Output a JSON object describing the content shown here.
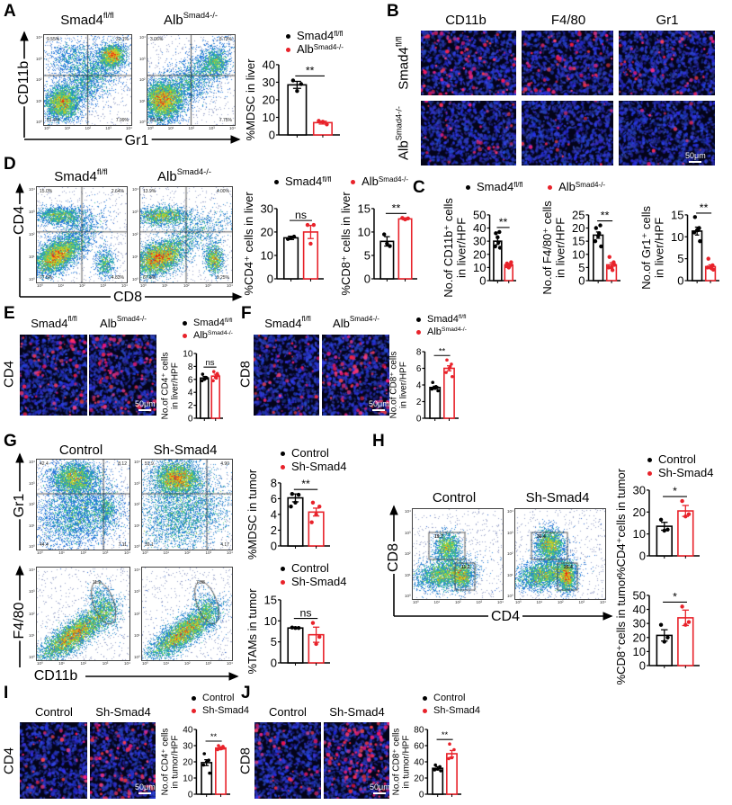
{
  "groups": {
    "liver": [
      {
        "base": "Smad4",
        "sup": "fl/fl",
        "color": "#000000"
      },
      {
        "base": "Alb",
        "sup": "Smad4-/-",
        "color": "#e8222a"
      }
    ],
    "tumor": [
      {
        "label": "Control",
        "color": "#000000"
      },
      {
        "label": "Sh-Smad4",
        "color": "#e8222a"
      }
    ]
  },
  "flow_ticks": [
    "10⁰",
    "10¹",
    "10²",
    "10³",
    "10⁴"
  ],
  "scale_bar": "50μm",
  "panels": {
    "A": {
      "letter": "A",
      "y_axis": "CD11b",
      "x_axis": "Gr1",
      "quadrants": [
        [
          "9.55%",
          "32.1%",
          "51.4%",
          "7.99%"
        ],
        [
          "3.06%",
          "8.73%",
          "80.4%",
          "7.75%"
        ]
      ]
    },
    "B": {
      "letter": "B",
      "columns": [
        "CD11b",
        "F4/80",
        "Gr1"
      ]
    },
    "C": {
      "letter": "C"
    },
    "D": {
      "letter": "D",
      "y_axis": "CD4",
      "x_axis": "CD8",
      "quadrants": [
        [
          "15.0%",
          "2.64%",
          "77.5%",
          "4.83%"
        ],
        [
          "13.9%",
          "4.00%",
          "67.8%",
          "9.25%"
        ]
      ]
    },
    "E": {
      "letter": "E",
      "stain": "CD4"
    },
    "F": {
      "letter": "F",
      "stain": "CD8"
    },
    "G": {
      "letter": "G",
      "y_axis_top": "Gr1",
      "y_axis_bottom": "F4/80",
      "x_axis": "CD11b",
      "quadrants": [
        [
          "42.4",
          "8.12",
          "44.4",
          "7.11"
        ],
        [
          "51.9",
          "4.90",
          "39.1",
          "4.17"
        ]
      ],
      "gates": [
        "11.2",
        "7.38"
      ]
    },
    "H": {
      "letter": "H",
      "y_axis": "CD8",
      "x_axis": "CD4",
      "gates": [
        [
          "19.7",
          "11.2"
        ],
        [
          "30.4",
          "25.4"
        ]
      ]
    },
    "I": {
      "letter": "I",
      "stain": "CD4"
    },
    "J": {
      "letter": "J",
      "stain": "CD8"
    }
  },
  "chart_data": [
    {
      "id": "A",
      "type": "bar",
      "ylabel": [
        "%MDSC in liver"
      ],
      "ymax": 40,
      "yticks": [
        "0",
        "10",
        "20",
        "30",
        "40"
      ],
      "sig": "**",
      "groups": [
        {
          "color": "#000000",
          "mean": 28.5,
          "sem": 2.0,
          "points": [
            31,
            29,
            25
          ]
        },
        {
          "color": "#e8222a",
          "mean": 7.0,
          "sem": 0.8,
          "points": [
            8,
            6,
            7.5
          ]
        }
      ]
    },
    {
      "id": "D-CD4",
      "type": "bar",
      "ylabel": [
        "%CD4⁺ cells in liver"
      ],
      "ymax": 30,
      "yticks": [
        "0",
        "10",
        "20",
        "30"
      ],
      "sig": "ns",
      "groups": [
        {
          "color": "#000000",
          "mean": 17.5,
          "sem": 0.7,
          "points": [
            17,
            18,
            17.5
          ]
        },
        {
          "color": "#e8222a",
          "mean": 20.0,
          "sem": 2.8,
          "points": [
            23,
            23,
            15
          ]
        }
      ]
    },
    {
      "id": "D-CD8",
      "type": "bar",
      "ylabel": [
        "%CD8⁺ cells in liver"
      ],
      "ymax": 15,
      "yticks": [
        "0",
        "5",
        "10",
        "15"
      ],
      "sig": "**",
      "groups": [
        {
          "color": "#000000",
          "mean": 8.0,
          "sem": 1.0,
          "points": [
            9.5,
            7,
            7.5
          ]
        },
        {
          "color": "#e8222a",
          "mean": 12.8,
          "sem": 0.2,
          "points": [
            13,
            12.9,
            12.7
          ]
        }
      ]
    },
    {
      "id": "C-CD11b",
      "type": "bar",
      "ylabel": [
        "No.of CD11b⁺ cells",
        "in liver/HPF"
      ],
      "ymax": 50,
      "yticks": [
        "0",
        "10",
        "20",
        "30",
        "40",
        "50"
      ],
      "sig": "**",
      "groups": [
        {
          "color": "#000000",
          "mean": 30,
          "sem": 2.5,
          "points": [
            36,
            37,
            33,
            26,
            25,
            29
          ]
        },
        {
          "color": "#e8222a",
          "mean": 12,
          "sem": 1.0,
          "points": [
            13,
            12,
            10,
            11,
            14,
            11
          ]
        }
      ]
    },
    {
      "id": "C-F480",
      "type": "bar",
      "ylabel": [
        "No.of F4/80⁺ cells",
        "in liver/HPF"
      ],
      "ymax": 25,
      "yticks": [
        "0",
        "5",
        "10",
        "15",
        "20",
        "25"
      ],
      "sig": "**",
      "groups": [
        {
          "color": "#000000",
          "mean": 17.3,
          "sem": 1.2,
          "points": [
            20,
            21,
            17,
            15,
            13,
            18
          ]
        },
        {
          "color": "#e8222a",
          "mean": 6.0,
          "sem": 0.8,
          "points": [
            9,
            7,
            5,
            5,
            6,
            4
          ]
        }
      ]
    },
    {
      "id": "C-Gr1",
      "type": "bar",
      "ylabel": [
        "No.of Gr1⁺ cells",
        "in liver/HPF"
      ],
      "ymax": 15,
      "yticks": [
        "0",
        "5",
        "10",
        "15"
      ],
      "sig": "**",
      "groups": [
        {
          "color": "#000000",
          "mean": 11.3,
          "sem": 0.9,
          "points": [
            14.5,
            12,
            11.5,
            11,
            9,
            11.5
          ]
        },
        {
          "color": "#e8222a",
          "mean": 3.2,
          "sem": 0.4,
          "points": [
            5,
            3.5,
            3,
            3,
            2.5,
            2.8
          ]
        }
      ]
    },
    {
      "id": "E",
      "type": "bar",
      "ylabel": [
        "No.of CD4⁺ cells",
        "in liver/HPF"
      ],
      "ymax": 10,
      "yticks": [
        "0",
        "2",
        "4",
        "6",
        "8",
        "10"
      ],
      "sig": "ns",
      "groups": [
        {
          "color": "#000000",
          "mean": 6.2,
          "sem": 0.25,
          "points": [
            6.8,
            6.3,
            6,
            5.8,
            6.2,
            6.3
          ]
        },
        {
          "color": "#e8222a",
          "mean": 6.5,
          "sem": 0.3,
          "points": [
            7.2,
            6.9,
            6.4,
            5.8,
            6.6,
            6.2
          ]
        }
      ]
    },
    {
      "id": "F",
      "type": "bar",
      "ylabel": [
        "No.of CD8⁺ cells",
        "in liver/HPF"
      ],
      "ymax": 8,
      "yticks": [
        "0",
        "2",
        "4",
        "6",
        "8"
      ],
      "sig": "**",
      "groups": [
        {
          "color": "#000000",
          "mean": 3.7,
          "sem": 0.15,
          "points": [
            4.3,
            3.7,
            3.6,
            3.5,
            3.3,
            3.8
          ]
        },
        {
          "color": "#e8222a",
          "mean": 6.0,
          "sem": 0.3,
          "points": [
            7,
            6.5,
            6,
            5.5,
            5,
            6.2
          ]
        }
      ]
    },
    {
      "id": "G-MDSC",
      "type": "bar",
      "ylabel": [
        "%MDSC in tumor"
      ],
      "ymax": 8,
      "yticks": [
        "0",
        "2",
        "4",
        "6",
        "8"
      ],
      "sig": "**",
      "groups": [
        {
          "color": "#000000",
          "mean": 6.1,
          "sem": 0.5,
          "points": [
            6.6,
            6.5,
            5.5,
            5
          ]
        },
        {
          "color": "#e8222a",
          "mean": 4.3,
          "sem": 0.5,
          "points": [
            5.5,
            5,
            4,
            3
          ]
        }
      ]
    },
    {
      "id": "G-TAMs",
      "type": "bar",
      "ylabel": [
        "%TAMs in tumor"
      ],
      "ymax": 15,
      "yticks": [
        "0",
        "5",
        "10",
        "15"
      ],
      "sig": "ns",
      "groups": [
        {
          "color": "#000000",
          "mean": 8.3,
          "sem": 0.05,
          "points": [
            8.4,
            8.3,
            8.3
          ]
        },
        {
          "color": "#e8222a",
          "mean": 6.7,
          "sem": 1.8,
          "points": [
            9.5,
            6.2,
            4.5
          ]
        }
      ]
    },
    {
      "id": "H-CD4",
      "type": "bar",
      "ylabel": [
        "%CD4⁺cells in tumor"
      ],
      "ymax": 30,
      "yticks": [
        "0",
        "10",
        "20",
        "30"
      ],
      "sig": "*",
      "groups": [
        {
          "color": "#000000",
          "mean": 13.5,
          "sem": 1.8,
          "points": [
            16.5,
            12,
            11.5
          ]
        },
        {
          "color": "#e8222a",
          "mean": 20.5,
          "sem": 2.5,
          "points": [
            25,
            19,
            18
          ]
        }
      ]
    },
    {
      "id": "H-CD8",
      "type": "bar",
      "ylabel": [
        "%CD8⁺cells in tumor"
      ],
      "ymax": 50,
      "yticks": [
        "0",
        "10",
        "20",
        "30",
        "40",
        "50"
      ],
      "sig": "*",
      "groups": [
        {
          "color": "#000000",
          "mean": 21.5,
          "sem": 4,
          "points": [
            29,
            20,
            17
          ]
        },
        {
          "color": "#e8222a",
          "mean": 34,
          "sem": 5.5,
          "points": [
            42,
            31,
            29
          ]
        }
      ]
    },
    {
      "id": "I",
      "type": "bar",
      "ylabel": [
        "No.of CD4⁺ cells",
        "in tumor/HPF"
      ],
      "ymax": 40,
      "yticks": [
        "0",
        "10",
        "20",
        "30",
        "40"
      ],
      "sig": "**",
      "groups": [
        {
          "color": "#000000",
          "mean": 19.5,
          "sem": 1.8,
          "points": [
            25,
            21,
            20,
            18,
            13
          ]
        },
        {
          "color": "#e8222a",
          "mean": 28.5,
          "sem": 0.8,
          "points": [
            30,
            29.5,
            28,
            27.5,
            28.5
          ]
        }
      ]
    },
    {
      "id": "J",
      "type": "bar",
      "ylabel": [
        "No.of CD8⁺ cells",
        "in tumor/HPF"
      ],
      "ymax": 80,
      "yticks": [
        "0",
        "20",
        "40",
        "60",
        "80"
      ],
      "sig": "**",
      "groups": [
        {
          "color": "#000000",
          "mean": 32,
          "sem": 2,
          "points": [
            36,
            34,
            31,
            30,
            29
          ]
        },
        {
          "color": "#e8222a",
          "mean": 50,
          "sem": 4,
          "points": [
            62,
            55,
            45,
            44
          ]
        }
      ]
    }
  ]
}
